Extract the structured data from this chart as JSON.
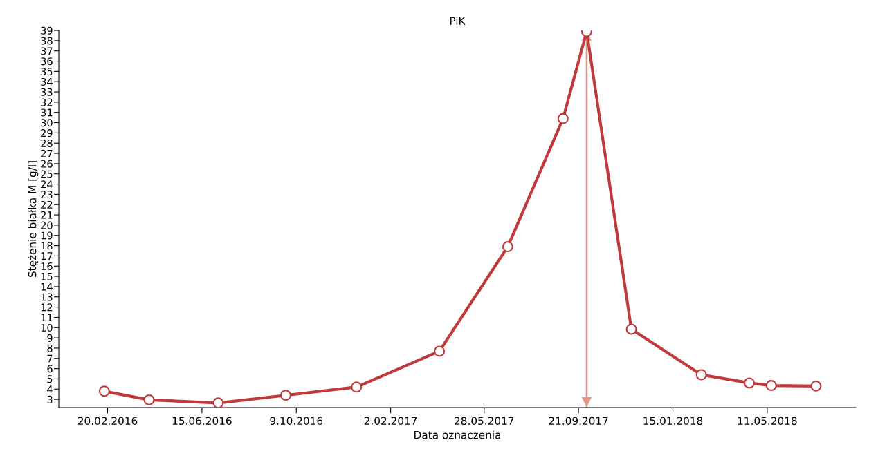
{
  "chart_data": {
    "type": "line",
    "title": "PiK",
    "xlabel": "Data oznaczenia",
    "ylabel": "Stężenie białka M [g/l]",
    "x": [
      "2016-02-16",
      "2016-04-11",
      "2016-07-05",
      "2016-09-26",
      "2016-12-22",
      "2017-04-03",
      "2017-06-26",
      "2017-09-02",
      "2017-10-01",
      "2017-11-25",
      "2018-02-19",
      "2018-04-19",
      "2018-05-16",
      "2018-07-10"
    ],
    "series": [
      {
        "color": "#c0393b",
        "values": [
          3.8,
          2.95,
          2.65,
          3.4,
          4.2,
          7.7,
          17.9,
          30.4,
          38.9,
          9.85,
          5.4,
          4.6,
          4.35,
          4.3
        ]
      }
    ],
    "marker": "circle",
    "line_style": "solid",
    "grid": false,
    "legend": false,
    "xlim": [
      "2015-12-22",
      "2018-08-28"
    ],
    "xticks": [
      {
        "value": "2016-02-20",
        "label": "20.02.2016"
      },
      {
        "value": "2016-06-15",
        "label": "15.06.2016"
      },
      {
        "value": "2016-10-09",
        "label": "9.10.2016"
      },
      {
        "value": "2017-02-02",
        "label": "2.02.2017"
      },
      {
        "value": "2017-05-28",
        "label": "28.05.2017"
      },
      {
        "value": "2017-09-21",
        "label": "21.09.2017"
      },
      {
        "value": "2018-01-15",
        "label": "15.01.2018"
      },
      {
        "value": "2018-05-11",
        "label": "11.05.2018"
      }
    ],
    "ylim": [
      2.2,
      39
    ],
    "yticks": [
      3,
      4,
      5,
      6,
      7,
      8,
      9,
      10,
      11,
      12,
      13,
      14,
      15,
      16,
      17,
      18,
      19,
      20,
      21,
      22,
      23,
      24,
      25,
      26,
      27,
      28,
      29,
      30,
      31,
      32,
      33,
      34,
      35,
      36,
      37,
      38,
      39
    ],
    "ref_lines": [
      {
        "axis": "x",
        "value": "2017-10-01",
        "color": "#e0968a",
        "line_style": "solid"
      }
    ]
  }
}
